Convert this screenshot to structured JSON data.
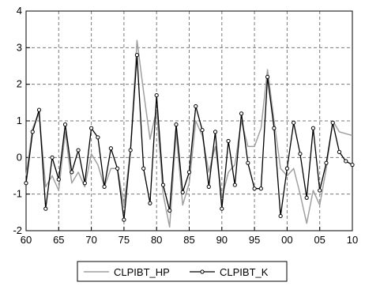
{
  "chart_data": {
    "type": "line",
    "title": "",
    "xlabel": "",
    "ylabel": "",
    "xlim": [
      1960,
      2010
    ],
    "ylim": [
      -2,
      4
    ],
    "x_ticks": [
      {
        "value": 1960,
        "label": "60"
      },
      {
        "value": 1965,
        "label": "65"
      },
      {
        "value": 1970,
        "label": "70"
      },
      {
        "value": 1975,
        "label": "75"
      },
      {
        "value": 1980,
        "label": "80"
      },
      {
        "value": 1985,
        "label": "85"
      },
      {
        "value": 1990,
        "label": "90"
      },
      {
        "value": 1995,
        "label": "95"
      },
      {
        "value": 2000,
        "label": "00"
      },
      {
        "value": 2005,
        "label": "05"
      },
      {
        "value": 2010,
        "label": "10"
      }
    ],
    "y_ticks": [
      {
        "value": -2,
        "label": "-2"
      },
      {
        "value": -1,
        "label": "-1"
      },
      {
        "value": 0,
        "label": "0"
      },
      {
        "value": 1,
        "label": "1"
      },
      {
        "value": 2,
        "label": "2"
      },
      {
        "value": 3,
        "label": "3"
      },
      {
        "value": 4,
        "label": "4"
      }
    ],
    "grid": true,
    "legend_position": "bottom",
    "x": [
      1960,
      1961,
      1962,
      1963,
      1964,
      1965,
      1966,
      1967,
      1968,
      1969,
      1970,
      1971,
      1972,
      1973,
      1974,
      1975,
      1976,
      1977,
      1978,
      1979,
      1980,
      1981,
      1982,
      1983,
      1984,
      1985,
      1986,
      1987,
      1988,
      1989,
      1990,
      1991,
      1992,
      1993,
      1994,
      1995,
      1996,
      1997,
      1998,
      1999,
      2000,
      2001,
      2002,
      2003,
      2004,
      2005,
      2006,
      2007,
      2008,
      2009,
      2010
    ],
    "series": [
      {
        "name": "CLPIBT_HP",
        "color": "#a0a0a0",
        "markers": false,
        "values": [
          -0.5,
          0.8,
          1.2,
          -0.8,
          -0.5,
          -0.9,
          0.7,
          -0.7,
          -0.4,
          -0.8,
          0.1,
          -0.2,
          -0.8,
          -0.3,
          -0.3,
          -1.3,
          0.2,
          3.2,
          1.8,
          0.5,
          1.3,
          -1.0,
          -1.9,
          0.7,
          -1.3,
          -0.7,
          1.0,
          0.6,
          -0.4,
          0.3,
          -1.1,
          -0.4,
          -0.2,
          1.0,
          0.3,
          0.3,
          0.8,
          2.4,
          1.0,
          -0.3,
          -0.5,
          -0.3,
          -1.0,
          -1.8,
          -0.9,
          -1.3,
          -0.3,
          1.0,
          0.7,
          0.65,
          0.6
        ]
      },
      {
        "name": "CLPIBT_K",
        "color": "#000000",
        "markers": true,
        "values": [
          -0.7,
          0.7,
          1.3,
          -1.4,
          0.0,
          -0.6,
          0.9,
          -0.4,
          0.2,
          -0.7,
          0.8,
          0.55,
          -0.8,
          0.25,
          -0.3,
          -1.7,
          0.2,
          2.8,
          -0.3,
          -1.25,
          1.7,
          -0.75,
          -1.45,
          0.9,
          -0.95,
          -0.4,
          1.4,
          0.75,
          -0.8,
          0.7,
          -1.4,
          0.45,
          -0.75,
          1.2,
          -0.15,
          -0.85,
          -0.85,
          2.2,
          0.8,
          -1.6,
          -0.3,
          0.95,
          0.1,
          -1.1,
          0.8,
          -0.9,
          -0.15,
          0.95,
          0.15,
          -0.1,
          -0.2
        ]
      }
    ]
  }
}
